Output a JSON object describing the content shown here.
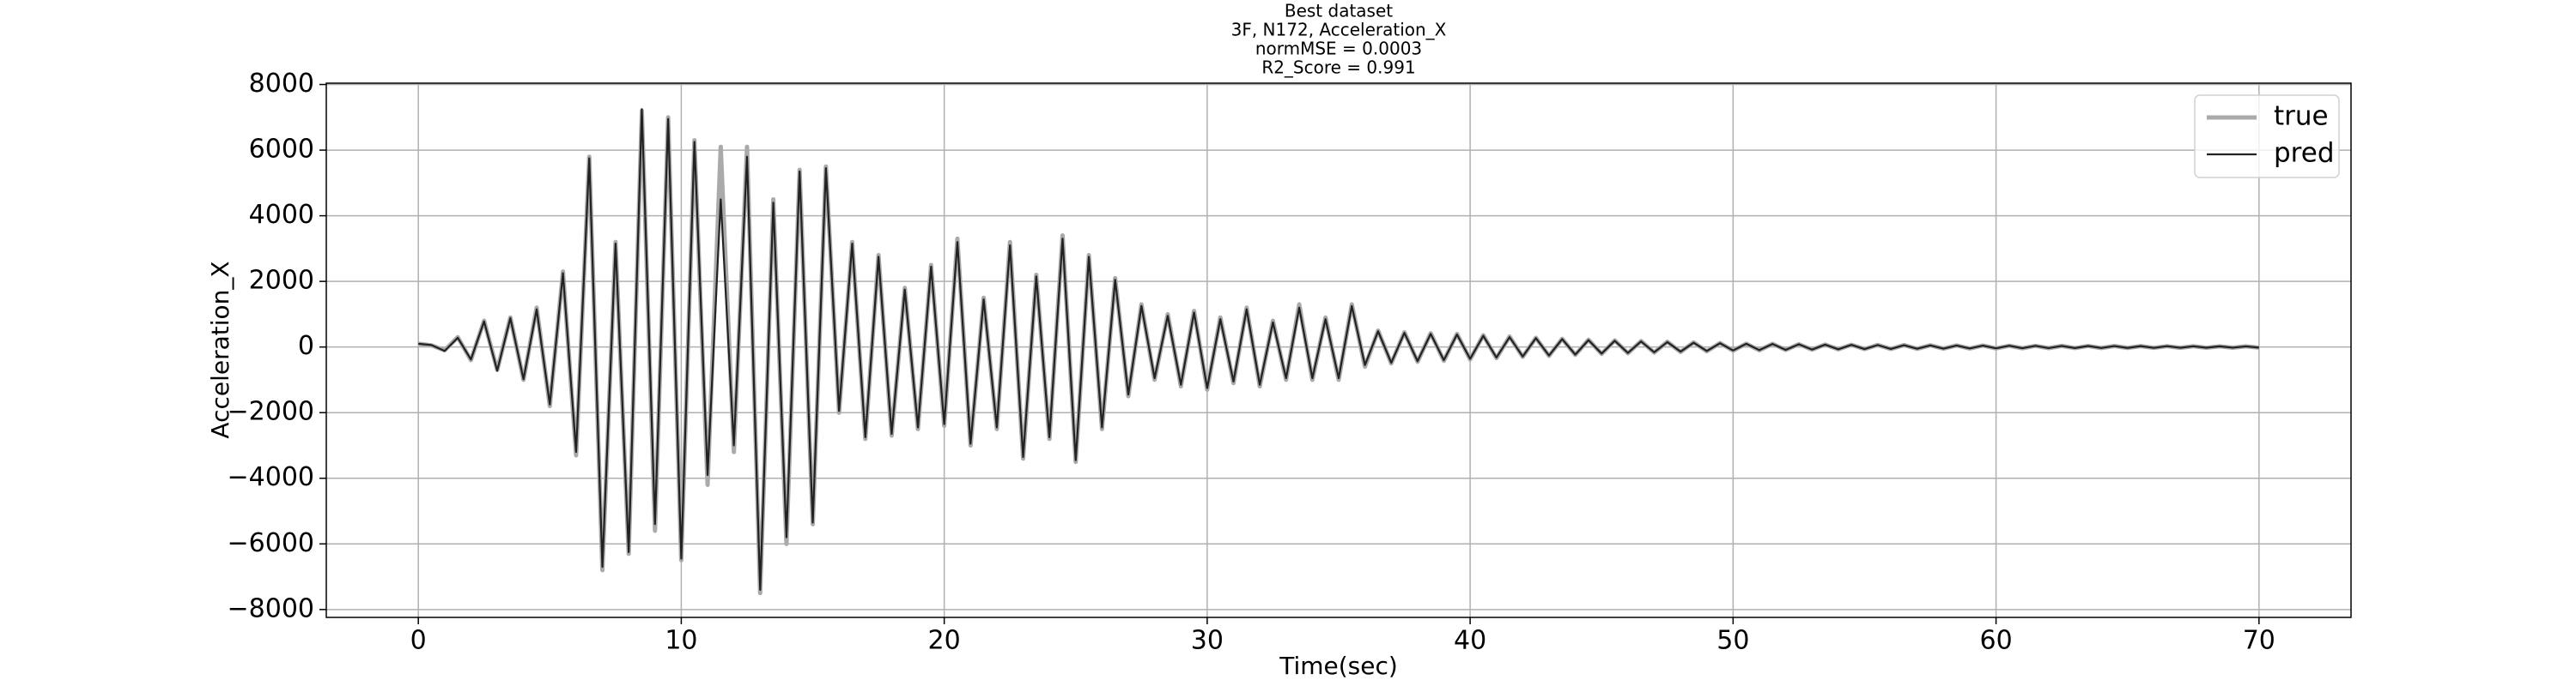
{
  "chart_data": {
    "type": "line",
    "title": [
      "Best dataset",
      "3F, N172, Acceleration_X",
      "normMSE = 0.0003",
      "R2_Score = 0.991"
    ],
    "x_label": "Time(sec)",
    "y_label": "Acceleration_X",
    "xlim": [
      -3.5,
      73.5
    ],
    "ylim": [
      -8240,
      8040
    ],
    "xticks": [
      0,
      10,
      20,
      30,
      40,
      50,
      60,
      70
    ],
    "yticks": [
      {
        "value": -8000,
        "label": "−8000"
      },
      {
        "value": -6000,
        "label": "−6000"
      },
      {
        "value": -4000,
        "label": "−4000"
      },
      {
        "value": -2000,
        "label": "−2000"
      },
      0,
      2000,
      4000,
      6000,
      8000
    ],
    "grid": true,
    "legend": "upper right",
    "x": [
      0,
      0.5,
      1,
      1.5,
      2,
      2.5,
      3,
      3.5,
      4,
      4.5,
      5,
      5.5,
      6,
      6.5,
      7,
      7.5,
      8,
      8.5,
      9,
      9.5,
      10,
      10.5,
      11,
      11.5,
      12,
      12.5,
      13,
      13.5,
      14,
      14.5,
      15,
      15.5,
      16,
      16.5,
      17,
      17.5,
      18,
      18.5,
      19,
      19.5,
      20,
      20.5,
      21,
      21.5,
      22,
      22.5,
      23,
      23.5,
      24,
      24.5,
      25,
      25.5,
      26,
      26.5,
      27,
      27.5,
      28,
      28.5,
      29,
      29.5,
      30,
      30.5,
      31,
      31.5,
      32,
      32.5,
      33,
      33.5,
      34,
      34.5,
      35,
      35.5,
      36,
      36.5,
      37,
      37.5,
      38,
      38.5,
      39,
      39.5,
      40,
      40.5,
      41,
      41.5,
      42,
      42.5,
      43,
      43.5,
      44,
      44.5,
      45,
      45.5,
      46,
      46.5,
      47,
      47.5,
      48,
      48.5,
      49,
      49.5,
      50,
      50.5,
      51,
      51.5,
      52,
      52.5,
      53,
      53.5,
      54,
      54.5,
      55,
      55.5,
      56,
      56.5,
      57,
      57.5,
      58,
      58.5,
      59,
      59.5,
      60,
      60.5,
      61,
      61.5,
      62,
      62.5,
      63,
      63.5,
      64,
      64.5,
      65,
      65.5,
      66,
      66.5,
      67,
      67.5,
      68,
      68.5,
      69,
      69.5,
      70
    ],
    "series": [
      {
        "name": "true",
        "color": "#aaaaaa",
        "values": [
          100,
          50,
          -100,
          300,
          -400,
          800,
          -700,
          900,
          -1000,
          1200,
          -1800,
          2300,
          -3300,
          5800,
          -6800,
          3200,
          -6300,
          7200,
          -5600,
          7000,
          -6500,
          6300,
          -4200,
          6100,
          -3200,
          6100,
          -7500,
          4500,
          -6000,
          5400,
          -5400,
          5500,
          -2000,
          3200,
          -2800,
          2800,
          -2700,
          1800,
          -2500,
          2500,
          -2400,
          3300,
          -3000,
          1500,
          -2500,
          3200,
          -3400,
          2200,
          -2800,
          3400,
          -3500,
          2800,
          -2500,
          2100,
          -1500,
          1300,
          -1000,
          1000,
          -1200,
          1100,
          -1300,
          900,
          -1100,
          1200,
          -1200,
          800,
          -1000,
          1300,
          -1000,
          900,
          -1000,
          1300,
          -600,
          500,
          -500,
          450,
          -450,
          420,
          -420,
          400,
          -380,
          360,
          -340,
          320,
          -300,
          280,
          -270,
          250,
          -240,
          220,
          -210,
          200,
          -190,
          180,
          -170,
          160,
          -150,
          140,
          -130,
          120,
          -110,
          100,
          -100,
          95,
          -90,
          85,
          -80,
          75,
          -70,
          68,
          -65,
          62,
          -60,
          58,
          -55,
          52,
          -50,
          48,
          -46,
          44,
          -42,
          40,
          -38,
          36,
          -35,
          34,
          -33,
          32,
          -31,
          30,
          -29,
          28,
          -27,
          26,
          -25,
          24,
          -23,
          22,
          -21,
          20,
          -20
        ]
      },
      {
        "name": "pred",
        "color": "#222222",
        "values": [
          100,
          60,
          -120,
          280,
          -380,
          780,
          -720,
          880,
          -980,
          1150,
          -1750,
          2250,
          -3200,
          5750,
          -6700,
          3150,
          -6250,
          7250,
          -5400,
          6950,
          -6450,
          6250,
          -3900,
          4500,
          -3000,
          5800,
          -7400,
          4400,
          -5800,
          5350,
          -5350,
          5450,
          -1950,
          3150,
          -2750,
          2750,
          -2650,
          1750,
          -2450,
          2450,
          -2350,
          3200,
          -2950,
          1450,
          -2450,
          3100,
          -3350,
          2150,
          -2750,
          3300,
          -3450,
          2750,
          -2450,
          2050,
          -1450,
          1250,
          -950,
          950,
          -1150,
          1050,
          -1250,
          850,
          -1050,
          1150,
          -1150,
          750,
          -950,
          1200,
          -950,
          850,
          -950,
          1250,
          -550,
          480,
          -480,
          430,
          -430,
          400,
          -400,
          380,
          -360,
          340,
          -320,
          300,
          -290,
          270,
          -260,
          240,
          -230,
          210,
          -200,
          190,
          -180,
          170,
          -160,
          150,
          -140,
          130,
          -120,
          115,
          -105,
          98,
          -95,
          92,
          -88,
          82,
          -78,
          72,
          -68,
          66,
          -63,
          60,
          -58,
          56,
          -53,
          50,
          -48,
          46,
          -44,
          42,
          -40,
          38,
          -37,
          35,
          -34,
          33,
          -32,
          31,
          -30,
          29,
          -28,
          27,
          -26,
          25,
          -24,
          23,
          -22,
          21,
          -20,
          19,
          -19
        ]
      }
    ]
  }
}
